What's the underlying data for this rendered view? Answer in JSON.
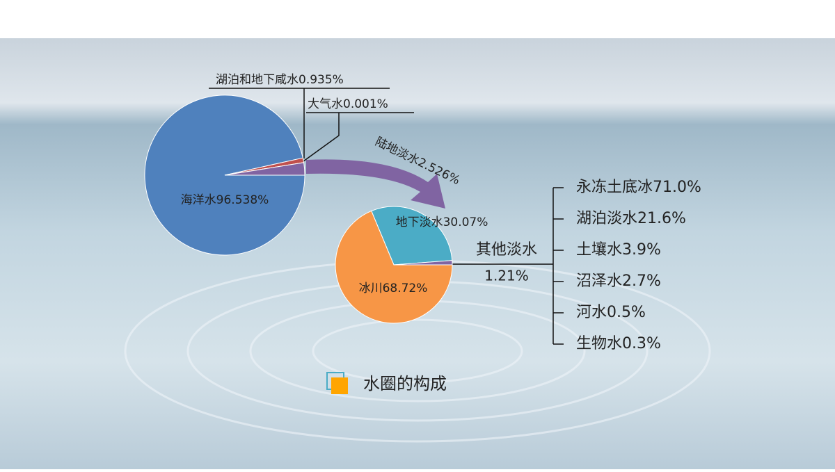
{
  "chart_data": [
    {
      "type": "pie",
      "categories": [
        "海洋水",
        "湖泊和地下咸水",
        "大气水",
        "陆地淡水"
      ],
      "values": [
        96.538,
        0.935,
        0.001,
        2.526
      ],
      "value_labels": [
        "96.538%",
        "0.935%",
        "0.001%",
        "2.526%"
      ],
      "colors": [
        "#4f81bd",
        "#c0504d",
        "#9bbb59",
        "#8064a2"
      ]
    },
    {
      "type": "pie",
      "categories": [
        "地下淡水",
        "其他淡水",
        "冰川"
      ],
      "values": [
        30.07,
        1.21,
        68.72
      ],
      "value_labels": [
        "30.07%",
        "1.21%",
        "68.72%"
      ],
      "colors": [
        "#4bacc6",
        "#8064a2",
        "#f79646"
      ]
    }
  ],
  "breakdown": {
    "items": [
      {
        "name": "永冻土底冰",
        "label": "71.0%"
      },
      {
        "name": "湖泊淡水",
        "label": "21.6%"
      },
      {
        "name": "土壤水",
        "label": "3.9%"
      },
      {
        "name": "沼泽水",
        "label": "2.7%"
      },
      {
        "name": "河水",
        "label": "0.5%"
      },
      {
        "name": "生物水",
        "label": "0.3%"
      }
    ]
  },
  "caption": "水圈的构成"
}
